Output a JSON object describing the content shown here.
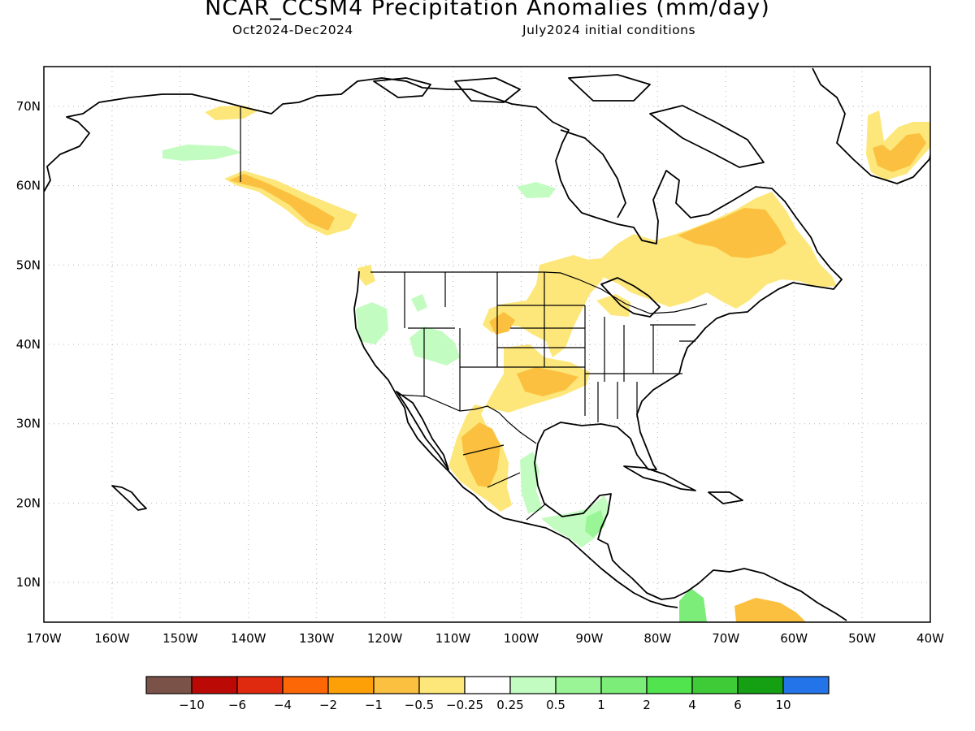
{
  "header": {
    "title": "NCAR_CCSM4 Precipitation Anomalies (mm/day)",
    "period": "Oct2024-Dec2024",
    "init": "July2024 initial conditions"
  },
  "map": {
    "lon_range": [
      -170,
      -40
    ],
    "lat_range": [
      5,
      75
    ],
    "lat_labels": [
      "10N",
      "20N",
      "30N",
      "40N",
      "50N",
      "60N",
      "70N"
    ],
    "lon_labels": [
      "170W",
      "160W",
      "150W",
      "140W",
      "130W",
      "120W",
      "110W",
      "100W",
      "90W",
      "80W",
      "70W",
      "60W",
      "50W",
      "40W"
    ],
    "gridlines": "dotted"
  },
  "colorbar": {
    "colors": [
      "#7b5248",
      "#bb0a06",
      "#e02a10",
      "#fd6706",
      "#fda008",
      "#fbc040",
      "#fde77a",
      "#ffffff",
      "#c3fcc0",
      "#9af596",
      "#7ded7a",
      "#52e44f",
      "#3ecb37",
      "#14a012",
      "#2374e8"
    ],
    "labels": [
      "-10",
      "-6",
      "-4",
      "-2",
      "-1",
      "-0.5",
      "-0.25",
      "0.25",
      "0.5",
      "1",
      "2",
      "4",
      "6",
      "10"
    ]
  },
  "anomaly_regions": [
    {
      "name": "alaska-north-dry",
      "level": "-0.25"
    },
    {
      "name": "alaska-west-wet",
      "level": "0.25"
    },
    {
      "name": "gulf-alaska-dry",
      "level": "-0.25"
    },
    {
      "name": "gulf-alaska-core",
      "level": "-0.5"
    },
    {
      "name": "pacific-nw-dry",
      "level": "-0.25"
    },
    {
      "name": "california-wet",
      "level": "0.25"
    },
    {
      "name": "great-basin-wet",
      "level": "0.25"
    },
    {
      "name": "colorado-wet",
      "level": "0.25"
    },
    {
      "name": "plains-dry",
      "level": "-0.25"
    },
    {
      "name": "kansas-core",
      "level": "-0.5"
    },
    {
      "name": "southern-plains-dry",
      "level": "-0.25"
    },
    {
      "name": "oklahoma-core",
      "level": "-0.5"
    },
    {
      "name": "mexico-west-dry",
      "level": "-0.25"
    },
    {
      "name": "mexico-core",
      "level": "-0.5"
    },
    {
      "name": "mexico-east-wet",
      "level": "0.25"
    },
    {
      "name": "central-america-wet",
      "level": "0.25"
    },
    {
      "name": "yucatan-wet",
      "level": "0.5"
    },
    {
      "name": "canada-east-dry",
      "level": "-0.25"
    },
    {
      "name": "quebec-core",
      "level": "-0.5"
    },
    {
      "name": "great-lakes-dry",
      "level": "-0.25"
    },
    {
      "name": "greenland-dry",
      "level": "-0.25"
    },
    {
      "name": "greenland-core",
      "level": "-0.5"
    },
    {
      "name": "colombia-wet",
      "level": "1"
    },
    {
      "name": "venezuela-dry",
      "level": "-0.5"
    },
    {
      "name": "hudson-wet",
      "level": "0.25"
    }
  ]
}
